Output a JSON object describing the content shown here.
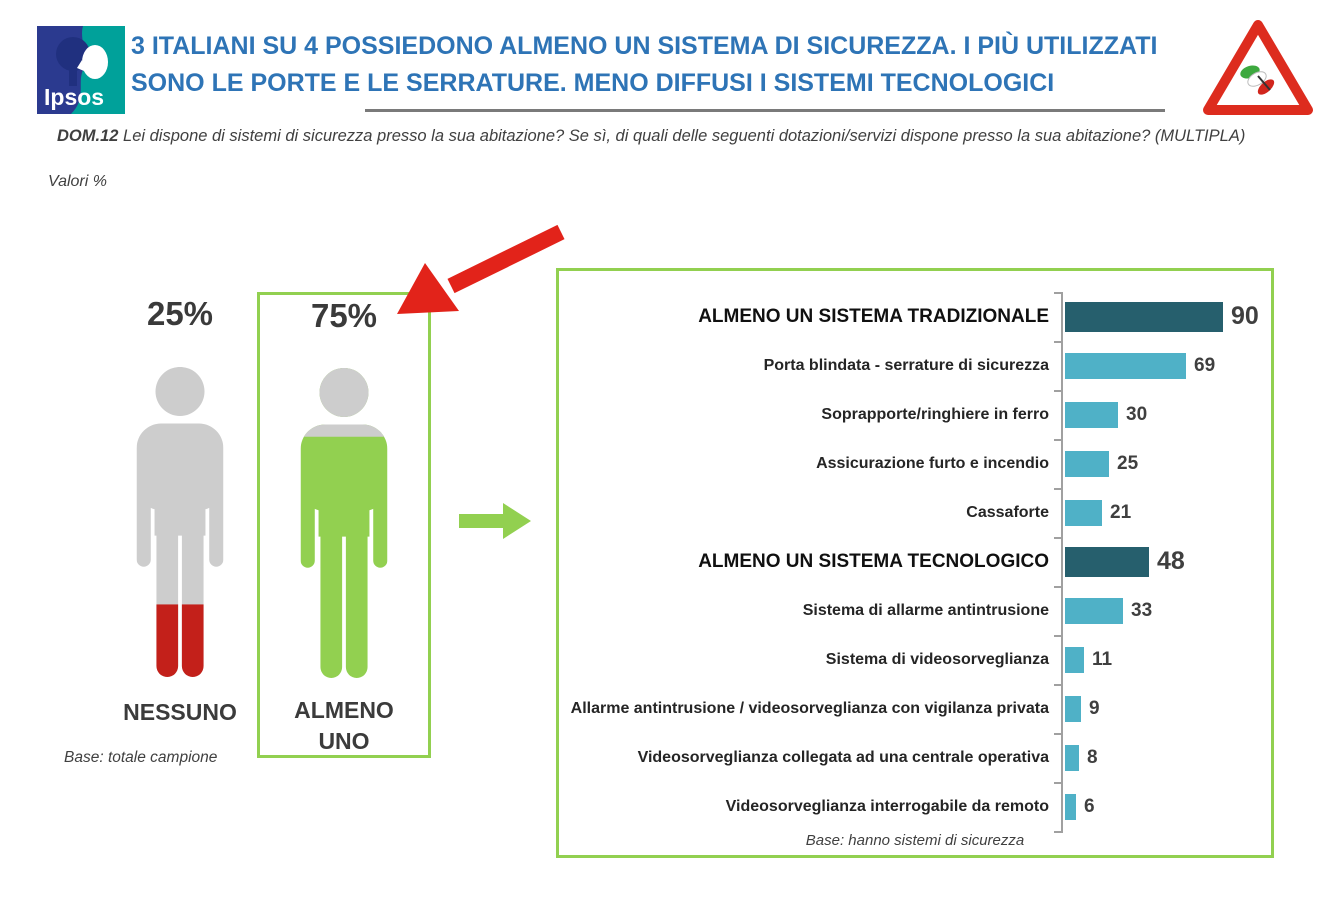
{
  "header": {
    "logo_text": "Ipsos",
    "title_line1": "3 ITALIANI SU 4 POSSIEDONO ALMENO UN SISTEMA DI SICUREZZA. I PIÙ UTILIZZATI",
    "title_line2": "SONO LE PORTE E LE SERRATURE. MENO DIFFUSI I SISTEMI TECNOLOGICI"
  },
  "question": {
    "prefix": "DOM.12",
    "text": " Lei dispone di sistemi di sicurezza presso la sua abitazione? Se sì, di quali delle seguenti dotazioni/servizi dispone presso la sua abitazione? (MULTIPLA)"
  },
  "values_label": "Valori %",
  "pictogram": {
    "none": {
      "value": "25%",
      "label": "NESSUNO"
    },
    "at_least_one": {
      "value": "75%",
      "label_line1": "ALMENO",
      "label_line2": "UNO"
    },
    "base_note": "Base: totale campione"
  },
  "chart_data": {
    "type": "bar",
    "orientation": "horizontal",
    "xlim": [
      0,
      100
    ],
    "unit": "%",
    "categories": [
      "ALMENO UN SISTEMA TRADIZIONALE",
      "Porta blindata - serrature di sicurezza",
      "Soprapporte/ringhiere in ferro",
      "Assicurazione furto e incendio",
      "Cassaforte",
      "ALMENO UN SISTEMA TECNOLOGICO",
      "Sistema di allarme antintrusione",
      "Sistema di videosorveglianza",
      "Allarme antintrusione / videosorveglianza con vigilanza privata",
      "Videosorveglianza collegata ad una centrale operativa",
      "Videosorveglianza interrogabile da remoto"
    ],
    "values": [
      90,
      69,
      30,
      25,
      21,
      48,
      33,
      11,
      9,
      8,
      6
    ],
    "emphasis_rows": [
      0,
      5
    ],
    "bar_color": "#4FB1C7",
    "emphasis_color": "#265F6D",
    "base_note": "Base: hanno sistemi di sicurezza",
    "legend": null,
    "grid": false
  },
  "colors": {
    "title_blue": "#2E74B6",
    "green_accent": "#92D050",
    "red_accent": "#E2231A",
    "figure_gray": "#CDCDCD",
    "figure_red": "#C3201A",
    "logo_blue": "#2B3A8F",
    "logo_teal": "#00A19A"
  }
}
